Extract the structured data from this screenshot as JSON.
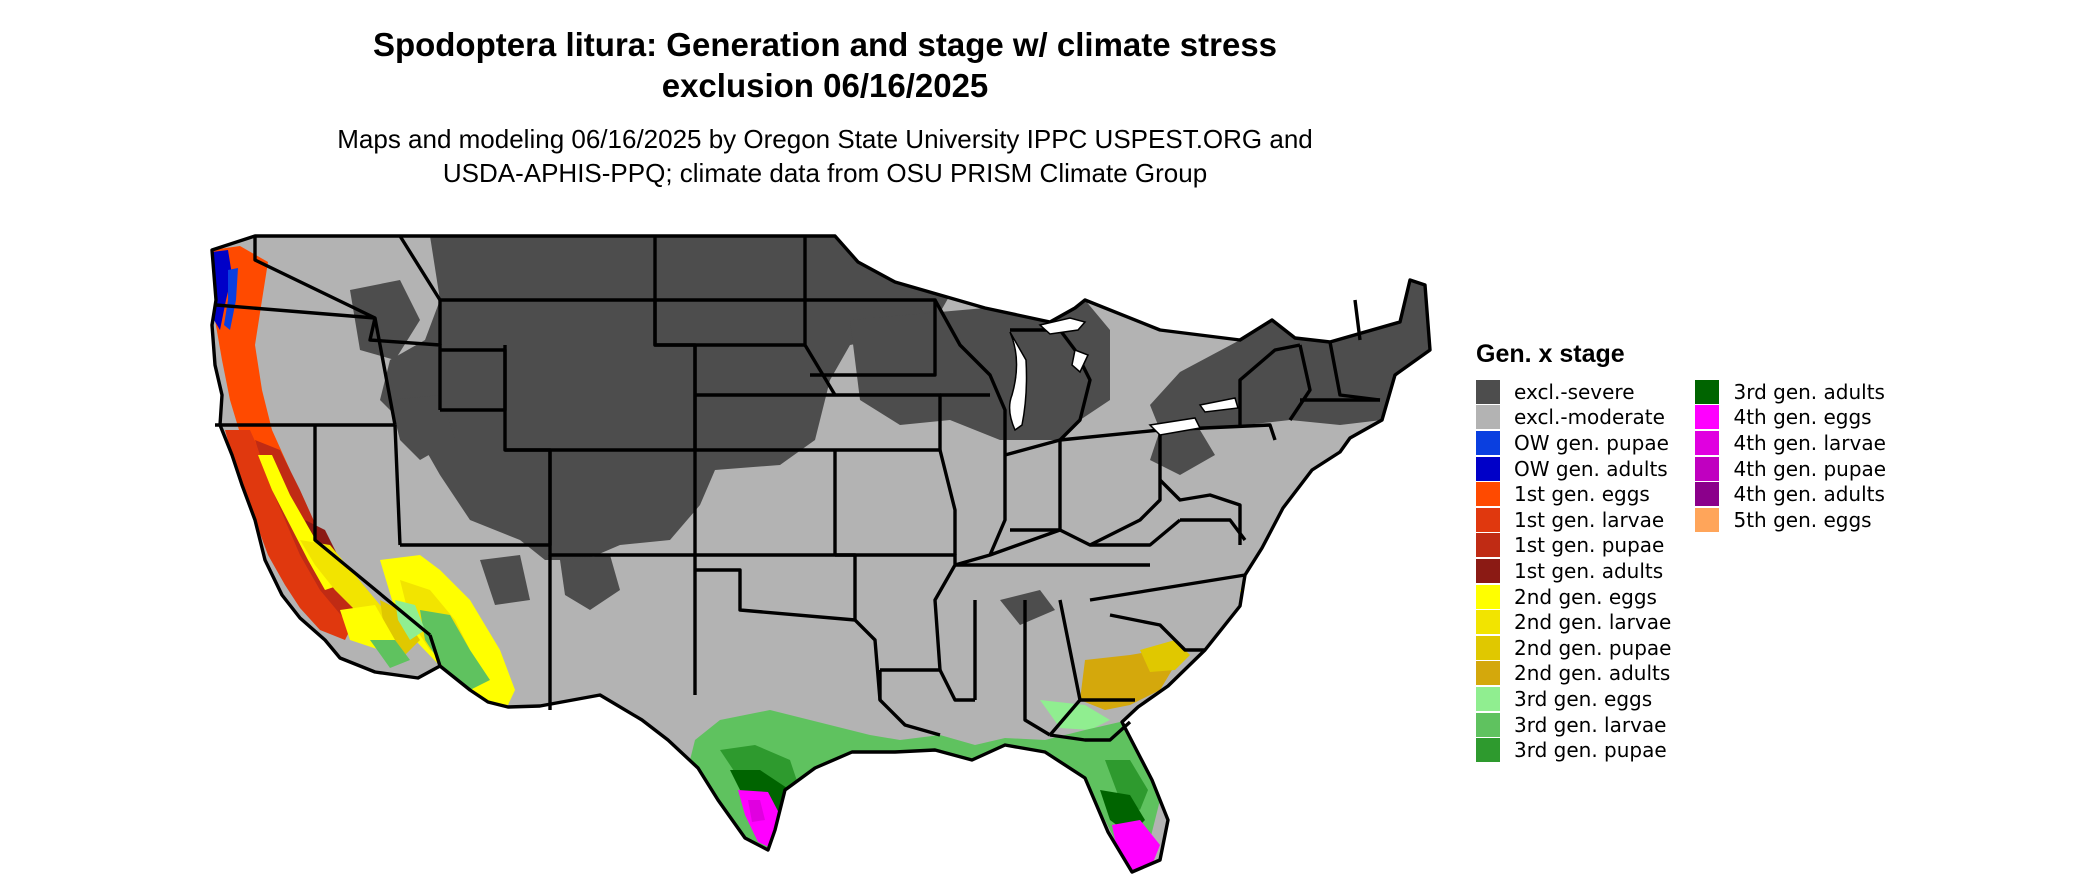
{
  "title": {
    "line1": "Spodoptera litura: Generation and stage w/ climate stress",
    "line2": "exclusion 06/16/2025"
  },
  "subtitle": {
    "line1": "Maps and modeling 06/16/2025 by Oregon State University IPPC USPEST.ORG and",
    "line2": "USDA-APHIS-PPQ; climate data from OSU PRISM Climate Group"
  },
  "legend": {
    "title": "Gen. x stage",
    "items": [
      {
        "label": "excl.-severe",
        "color": "#4d4d4d"
      },
      {
        "label": "excl.-moderate",
        "color": "#b3b3b3"
      },
      {
        "label": "OW gen. pupae",
        "color": "#0a3fe0"
      },
      {
        "label": "OW gen. adults",
        "color": "#0000c8"
      },
      {
        "label": "1st gen. eggs",
        "color": "#ff4a00"
      },
      {
        "label": "1st gen. larvae",
        "color": "#e0380e"
      },
      {
        "label": "1st gen. pupae",
        "color": "#c02b14"
      },
      {
        "label": "1st gen. adults",
        "color": "#8b1a14"
      },
      {
        "label": "2nd gen. eggs",
        "color": "#ffff00"
      },
      {
        "label": "2nd gen. larvae",
        "color": "#f2e400"
      },
      {
        "label": "2nd gen. pupae",
        "color": "#e0c800"
      },
      {
        "label": "2nd gen. adults",
        "color": "#d4a80c"
      },
      {
        "label": "3rd gen. eggs",
        "color": "#90ee90"
      },
      {
        "label": "3rd gen. larvae",
        "color": "#5fc25f"
      },
      {
        "label": "3rd gen. pupae",
        "color": "#2e9a2e"
      },
      {
        "label": "3rd gen. adults",
        "color": "#006400"
      },
      {
        "label": "4th gen. eggs",
        "color": "#ff00ff"
      },
      {
        "label": "4th gen. larvae",
        "color": "#e000e0"
      },
      {
        "label": "4th gen. pupae",
        "color": "#c000c0"
      },
      {
        "label": "4th gen. adults",
        "color": "#8b008b"
      },
      {
        "label": "5th gen. eggs",
        "color": "#ffa55a"
      }
    ]
  },
  "map": {
    "region": "contiguous United States",
    "boundary_color": "#000000"
  }
}
